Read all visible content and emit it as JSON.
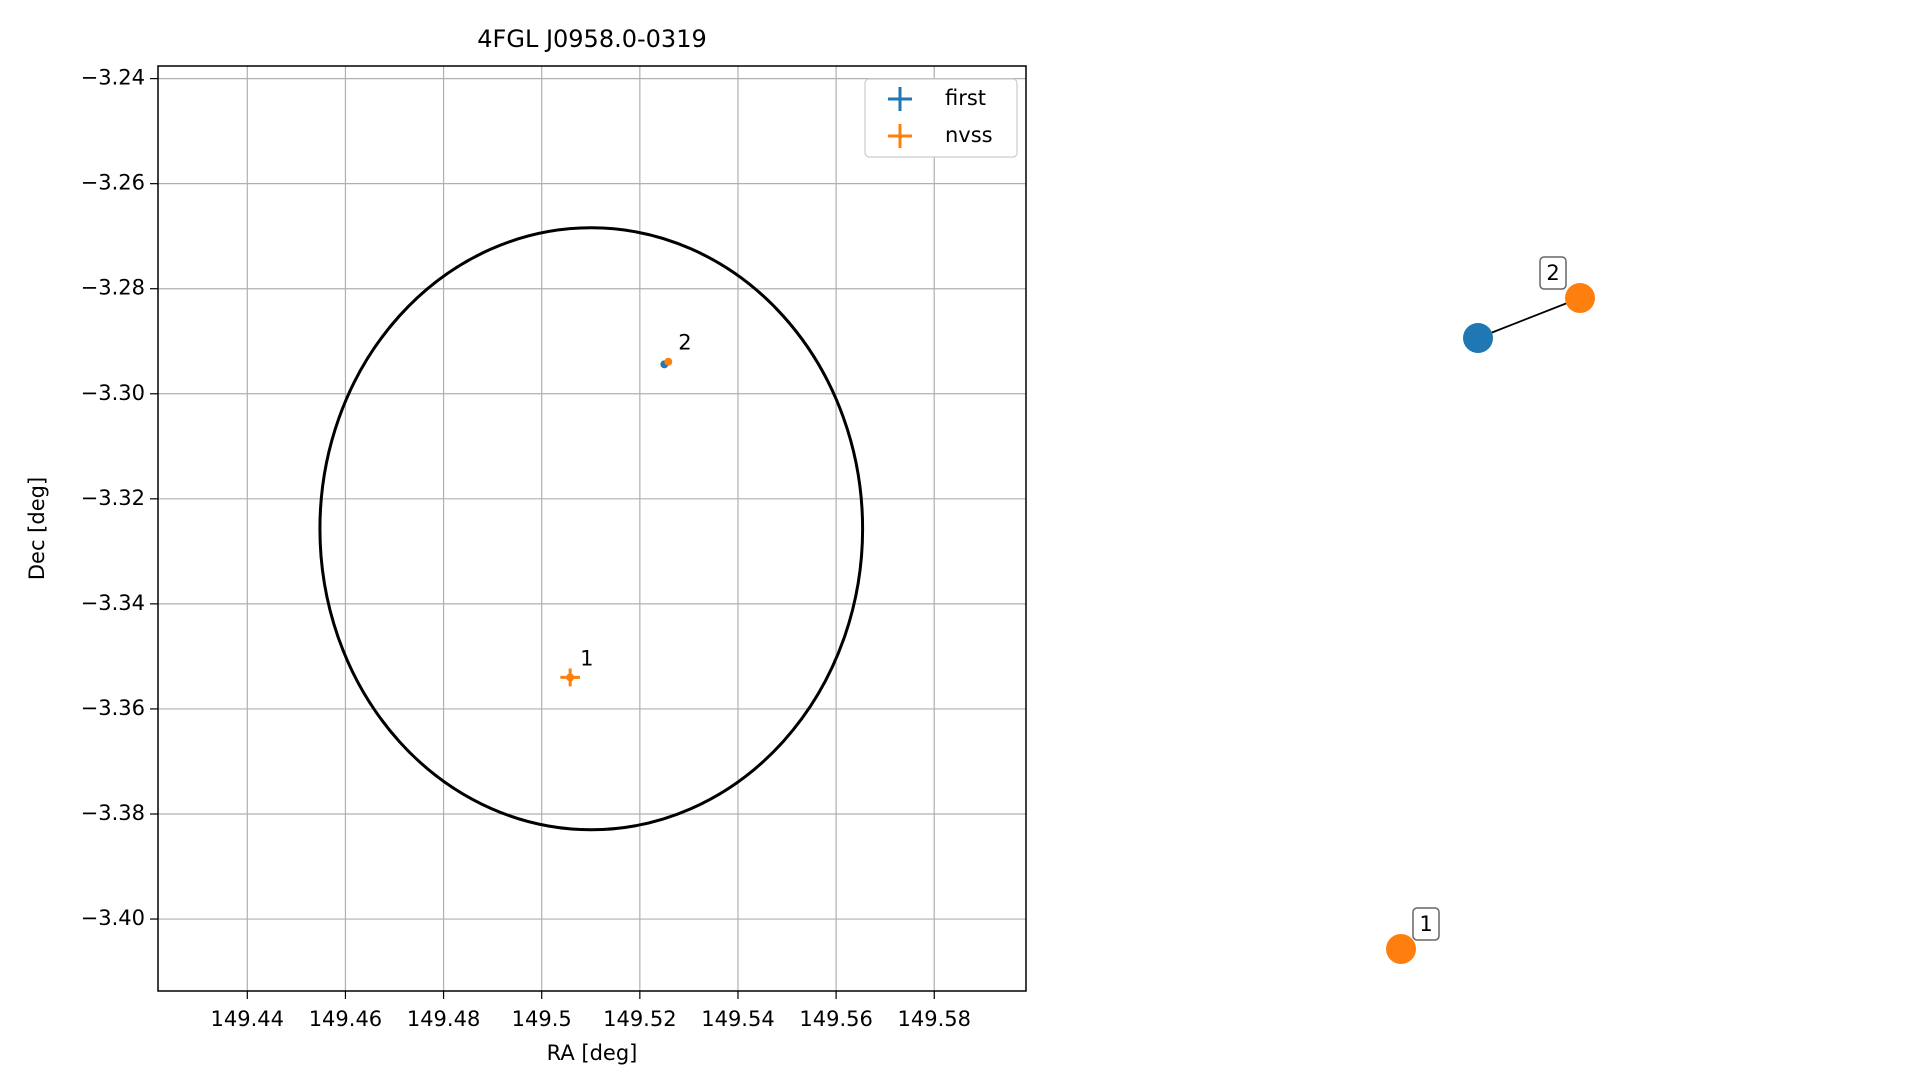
{
  "chart_data": [
    {
      "type": "scatter",
      "title": "4FGL J0958.0-0319",
      "x_label": "RA [deg]",
      "y_label": "Dec [deg]",
      "xlim": [
        149.4218,
        149.5987
      ],
      "ylim": [
        -3.4137,
        -3.2376
      ],
      "xticks": [
        149.44,
        149.46,
        149.48,
        149.5,
        149.52,
        149.54,
        149.56,
        149.58
      ],
      "yticks": [
        {
          "value": -3.24,
          "label": "−3.24"
        },
        {
          "value": -3.26,
          "label": "−3.26"
        },
        {
          "value": -3.28,
          "label": "−3.28"
        },
        {
          "value": -3.3,
          "label": "−3.30"
        },
        {
          "value": -3.32,
          "label": "−3.32"
        },
        {
          "value": -3.34,
          "label": "−3.34"
        },
        {
          "value": -3.36,
          "label": "−3.36"
        },
        {
          "value": -3.38,
          "label": "−3.38"
        },
        {
          "value": -3.4,
          "label": "−3.40"
        }
      ],
      "grid": true,
      "legend": "upper right",
      "series": [
        {
          "name": "first",
          "color": "#1f77b4",
          "x": [
            149.525
          ],
          "y": [
            -3.2944
          ],
          "xerr": [
            0.0005
          ],
          "yerr": [
            0.0005
          ]
        },
        {
          "name": "nvss",
          "color": "#ff7f0e",
          "x": [
            149.5058,
            149.5258
          ],
          "y": [
            -3.354,
            -3.2939
          ],
          "xerr": [
            0.002,
            0.0005
          ],
          "yerr": [
            0.0017,
            0.0005
          ]
        }
      ],
      "annotations": [
        {
          "text": "1",
          "x": 149.5058,
          "y": -3.354
        },
        {
          "text": "2",
          "x": 149.5258,
          "y": -3.2939
        }
      ],
      "ellipse": {
        "cx": 149.5101,
        "cy": -3.3257,
        "width": 0.1106,
        "height": 0.1146,
        "color": "#000000"
      }
    },
    {
      "type": "graph",
      "nodes": [
        {
          "label": "2",
          "color": "#1f77b4",
          "show_label": false
        },
        {
          "label": "2",
          "color": "#ff7f0e",
          "show_label": true
        },
        {
          "label": "1",
          "color": "#ff7f0e",
          "show_label": true
        }
      ],
      "edges": [
        [
          0,
          1
        ]
      ]
    }
  ]
}
